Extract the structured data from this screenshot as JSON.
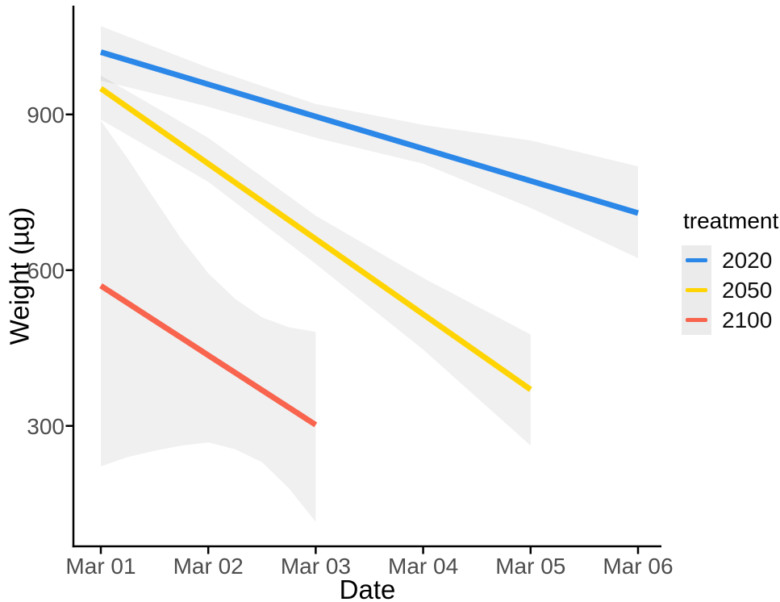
{
  "figure": {
    "background": "#ffffff",
    "axis_color": "#000000",
    "tick_label_color": "#4d4d4d",
    "title_color": "#000000",
    "legend_key_fill": "#ebebeb"
  },
  "chart_data": {
    "type": "line",
    "title": "",
    "xlabel": "Date",
    "ylabel": "Weight (µg)",
    "legend_title": "treatment",
    "legend_position": "right",
    "grid": false,
    "x_categories": [
      "Mar 01",
      "Mar 02",
      "Mar 03",
      "Mar 04",
      "Mar 05",
      "Mar 06"
    ],
    "y_ticks": [
      300,
      600,
      900
    ],
    "ylim": [
      68,
      1108
    ],
    "xlim_days": [
      -0.2553,
      5.2178
    ],
    "ribbon_fill": "rgba(0,0,0,0.059)",
    "series": [
      {
        "name": "2020",
        "color": "#2b87e8",
        "x": [
          0,
          5
        ],
        "y": [
          1020,
          710
        ],
        "ci": {
          "x": [
            0,
            1,
            2,
            3,
            4,
            5
          ],
          "lo": [
            965,
            915,
            855,
            805,
            720,
            623
          ],
          "hi": [
            1070,
            990,
            920,
            880,
            850,
            800
          ]
        }
      },
      {
        "name": "2050",
        "color": "#ffd404",
        "x": [
          0,
          4
        ],
        "y": [
          950,
          370
        ],
        "ci": {
          "x": [
            0,
            1,
            2,
            3,
            4
          ],
          "lo": [
            890,
            770,
            612,
            447,
            262
          ],
          "hi": [
            975,
            855,
            705,
            585,
            476
          ]
        }
      },
      {
        "name": "2100",
        "color": "#f8644d",
        "x": [
          0,
          0.25,
          0.5,
          0.75,
          1,
          1.25,
          1.5,
          1.75,
          2
        ],
        "y": [
          570,
          536.5,
          503,
          469.5,
          436,
          402.5,
          369,
          335.5,
          302
        ],
        "ci": {
          "x": [
            0,
            0.25,
            0.5,
            0.75,
            1,
            1.25,
            1.5,
            1.75,
            2
          ],
          "lo": [
            222,
            240,
            252,
            262,
            268,
            255,
            230,
            180,
            115
          ],
          "hi": [
            888,
            815,
            737,
            660,
            594,
            545,
            509,
            490,
            481
          ]
        }
      }
    ]
  }
}
